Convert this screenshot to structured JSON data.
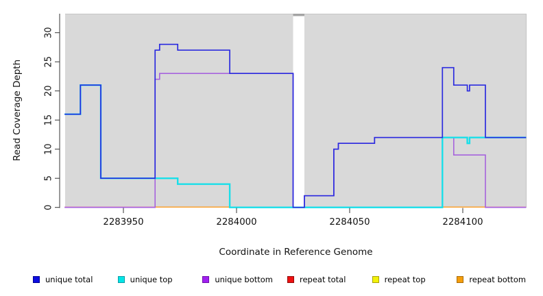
{
  "chart_data": {
    "type": "line",
    "subtype": "step",
    "title": "",
    "xlabel": "Coordinate in Reference Genome",
    "ylabel": "Read Coverage Depth",
    "x_ticks": [
      2283950,
      2284000,
      2284050,
      2284100
    ],
    "y_ticks": [
      0,
      5,
      10,
      15,
      20,
      25,
      30
    ],
    "x_range": [
      2283924,
      2284128
    ],
    "y_range": [
      0,
      33.3
    ],
    "grid": false,
    "legend_position": "bottom",
    "plot_background": "#d9d9d9",
    "page_background": "#ffffff",
    "coverage_gap": {
      "from": 2284025,
      "to": 2284030,
      "band_color": "#ffffff",
      "cap_color": "#a4a4a4"
    },
    "series": [
      {
        "name": "unique total",
        "color": "#2b2bdf",
        "width": 1.7,
        "hidden": false,
        "end_x": 2284128,
        "points": [
          [
            2283924,
            16
          ],
          [
            2283931,
            21
          ],
          [
            2283940,
            5
          ],
          [
            2283964,
            27
          ],
          [
            2283966,
            28
          ],
          [
            2283974,
            27
          ],
          [
            2283997,
            23
          ],
          [
            2284025,
            0
          ],
          [
            2284030,
            2
          ],
          [
            2284043,
            10
          ],
          [
            2284045,
            11
          ],
          [
            2284061,
            12
          ],
          [
            2284091,
            24
          ],
          [
            2284096,
            21
          ],
          [
            2284102,
            20
          ],
          [
            2284103,
            21
          ],
          [
            2284110,
            12
          ]
        ]
      },
      {
        "name": "unique top",
        "color": "#19dfe9",
        "width": 2.4,
        "hidden": false,
        "end_x": 2284128,
        "points": [
          [
            2283924,
            16
          ],
          [
            2283931,
            21
          ],
          [
            2283940,
            5
          ],
          [
            2283974,
            4
          ],
          [
            2283997,
            0
          ],
          [
            2284091,
            12
          ],
          [
            2284102,
            11
          ],
          [
            2284103,
            12
          ]
        ]
      },
      {
        "name": "unique bottom",
        "color": "#a663dd",
        "width": 1.6,
        "hidden": false,
        "end_x": 2284128,
        "points": [
          [
            2283924,
            0
          ],
          [
            2283964,
            22
          ],
          [
            2283966,
            23
          ],
          [
            2284025,
            0
          ],
          [
            2284030,
            2
          ],
          [
            2284043,
            10
          ],
          [
            2284045,
            11
          ],
          [
            2284061,
            12
          ],
          [
            2284096,
            9
          ],
          [
            2284110,
            0
          ]
        ]
      },
      {
        "name": "repeat total",
        "color": "#ee1111",
        "width": 1.4,
        "hidden": true,
        "end_x": 2284128,
        "points": [
          [
            2283924,
            0
          ]
        ]
      },
      {
        "name": "repeat top",
        "color": "#f2f20a",
        "width": 1.4,
        "hidden": true,
        "end_x": 2284128,
        "points": [
          [
            2283924,
            0
          ]
        ]
      },
      {
        "name": "repeat bottom",
        "color": "#f59e0c",
        "width": 1.4,
        "hidden": true,
        "end_x": 2284128,
        "points": [
          [
            2283924,
            0
          ]
        ]
      }
    ],
    "baseline_segments": [
      {
        "from": 2283924,
        "to": 2283964,
        "color": "#ee87ac"
      },
      {
        "from": 2283964,
        "to": 2283997,
        "color": "#ff9d1e"
      },
      {
        "from": 2283997,
        "to": 2284091,
        "color": "#a4d7a4"
      },
      {
        "from": 2284091,
        "to": 2284110,
        "color": "#ff9d1e"
      },
      {
        "from": 2284110,
        "to": 2284128,
        "color": "#ee87ac"
      }
    ],
    "legend": [
      {
        "label": "unique total",
        "color": "#0d0de0",
        "border": "#000090"
      },
      {
        "label": "unique top",
        "color": "#00e6e6",
        "border": "#0b9ba6"
      },
      {
        "label": "unique bottom",
        "color": "#a020f0",
        "border": "#6d10a8"
      },
      {
        "label": "repeat total",
        "color": "#ee1111",
        "border": "#8f0a0a"
      },
      {
        "label": "repeat top",
        "color": "#f2f20a",
        "border": "#a8a00b"
      },
      {
        "label": "repeat bottom",
        "color": "#f59e0c",
        "border": "#a86a08"
      }
    ]
  }
}
